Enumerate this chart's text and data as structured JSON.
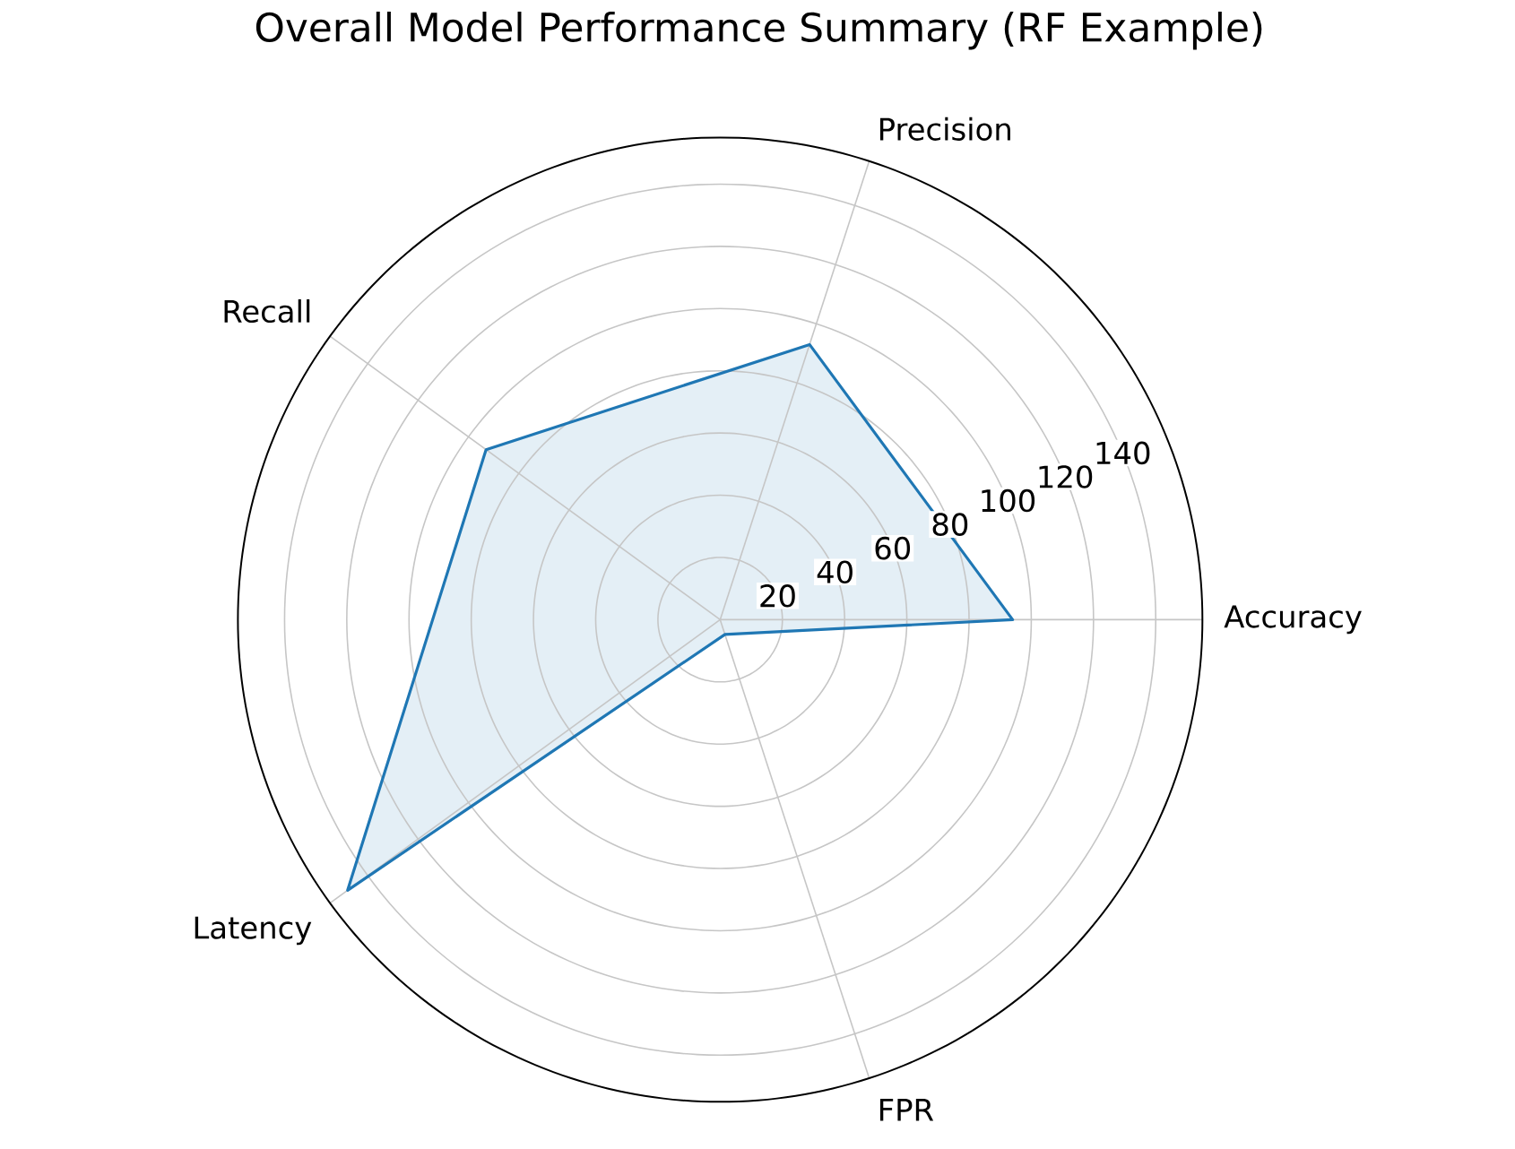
{
  "chart_data": {
    "type": "radar",
    "title": "Overall Model Performance Summary (RF Example)",
    "categories": [
      "Precision",
      "Accuracy",
      "FPR",
      "Latency",
      "Recall"
    ],
    "series": [
      {
        "color": "#1f77b4",
        "values": [
          93,
          94,
          5,
          148,
          93
        ]
      }
    ],
    "ylim": [
      0,
      155
    ],
    "yticks": [
      20,
      40,
      60,
      80,
      100,
      120,
      140
    ],
    "grid": true,
    "marker": "none",
    "line_style": "solid"
  }
}
